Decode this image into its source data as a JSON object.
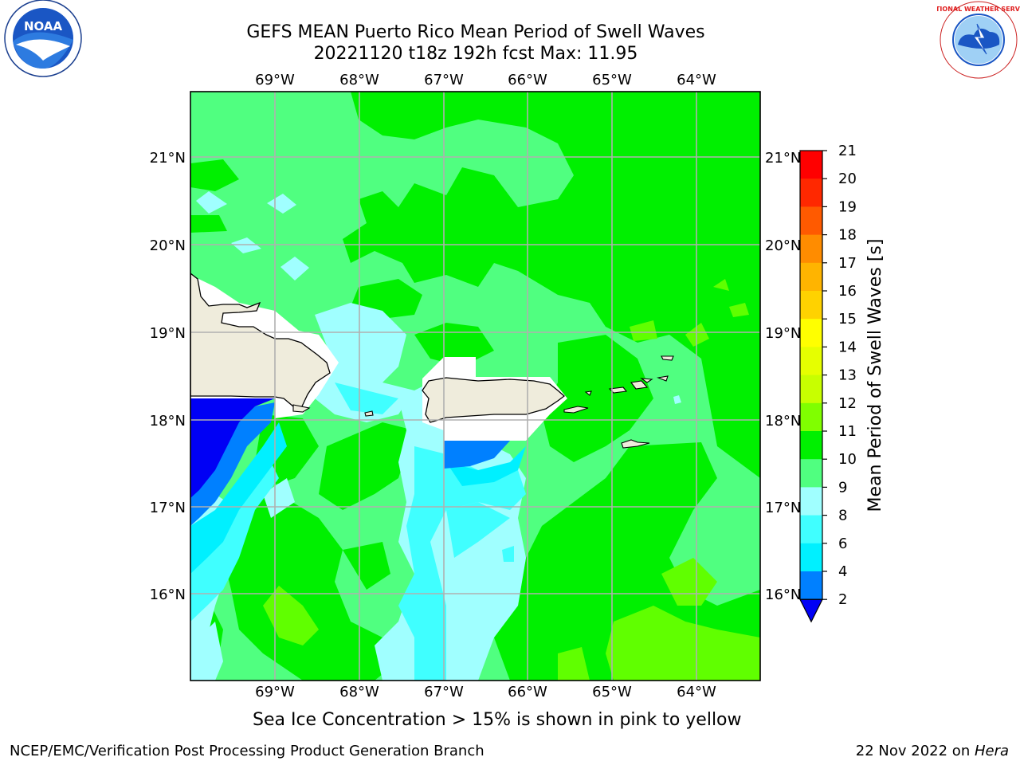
{
  "header": {
    "title_line1": "GEFS MEAN Puerto Rico Mean Period of Swell Waves",
    "title_line2": "20221120 t18z 192h fcst   Max: 11.95"
  },
  "map": {
    "lon_labels": [
      "69°W",
      "68°W",
      "67°W",
      "66°W",
      "65°W",
      "64°W"
    ],
    "lat_labels": [
      "21°N",
      "20°N",
      "19°N",
      "18°N",
      "17°N",
      "16°N"
    ],
    "land_color": "#efecdc",
    "ocean_colors": {
      "level_2_4": "#0000f5",
      "level_4_6": "#0080ff",
      "level_6_7": "#00f0ff",
      "level_7_8": "#40ffff",
      "level_8_9": "#a0ffff",
      "level_9_10": "#50ff80",
      "level_10_11": "#00f000",
      "level_11_12": "#60ff00"
    }
  },
  "colorbar": {
    "label": "Mean Period of Swell Waves [s]",
    "ticks": [
      "21",
      "20",
      "19",
      "18",
      "17",
      "16",
      "15",
      "14",
      "13",
      "12",
      "11",
      "10",
      "9",
      "8",
      "6",
      "4",
      "2"
    ],
    "colors": [
      "#ff0000",
      "#ff2800",
      "#ff5a00",
      "#ff8c00",
      "#ffb400",
      "#ffd200",
      "#ffff00",
      "#e6ff00",
      "#c8ff00",
      "#80ff00",
      "#00f000",
      "#50ff80",
      "#a0ffff",
      "#40ffff",
      "#00f0ff",
      "#0080ff"
    ],
    "under_color": "#0000f5"
  },
  "caption": "Sea Ice Concentration > 15% is shown in pink to yellow",
  "footer": {
    "left": "NCEP/EMC/Verification Post Processing Product Generation Branch",
    "right_date": "22 Nov 2022 on ",
    "right_machine": "Hera"
  },
  "logos": {
    "left": "NOAA",
    "right": "NATIONAL WEATHER SERVICE"
  }
}
